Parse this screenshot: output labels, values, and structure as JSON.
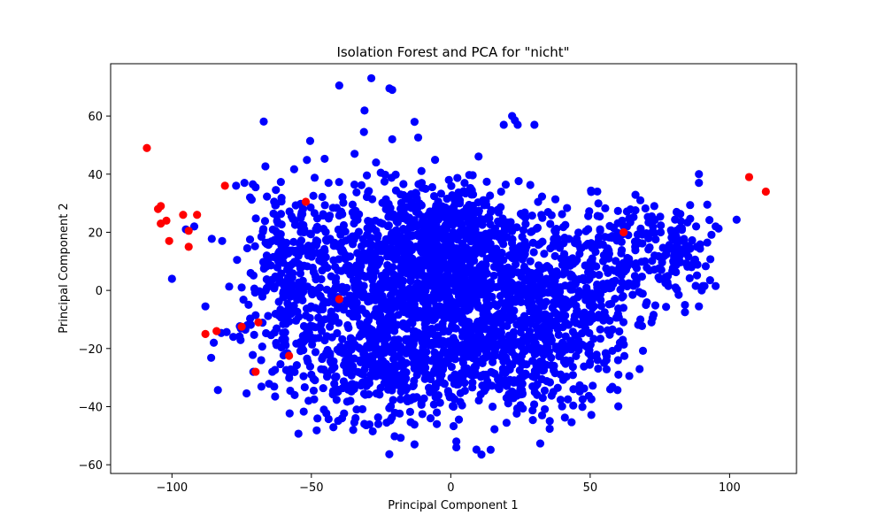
{
  "chart_data": {
    "type": "scatter",
    "title": "Isolation Forest and PCA for \"nicht\"",
    "xlabel": "Principal Component 1",
    "ylabel": "Principal Component 2",
    "xlim": [
      -122,
      124
    ],
    "ylim": [
      -63,
      78
    ],
    "xticks": [
      -100,
      -50,
      0,
      50,
      100
    ],
    "yticks": [
      -60,
      -40,
      -20,
      0,
      20,
      40,
      60
    ],
    "grid": false,
    "legend": "none",
    "colors": {
      "normal": "#0000ff",
      "anomaly": "#ff0000"
    },
    "series": [
      {
        "color": "#0000ff",
        "points": [
          [
            -40,
            70.5
          ],
          [
            -28.5,
            73
          ],
          [
            -22,
            69.5
          ],
          [
            -21,
            69
          ],
          [
            -13,
            58
          ],
          [
            -21,
            52
          ],
          [
            -34.5,
            47
          ],
          [
            22,
            60
          ],
          [
            23,
            58.5
          ],
          [
            19,
            57
          ],
          [
            24,
            57
          ],
          [
            30,
            57
          ],
          [
            -77,
            36
          ],
          [
            -74,
            37
          ],
          [
            -71,
            36.5
          ],
          [
            -70,
            35.5
          ],
          [
            -72,
            32
          ],
          [
            -53,
            28
          ],
          [
            -95,
            21
          ],
          [
            -92,
            22
          ],
          [
            -100,
            4
          ],
          [
            -82,
            17
          ],
          [
            -72,
            17.5
          ],
          [
            -66,
            16
          ],
          [
            -73,
            14.5
          ],
          [
            -66,
            12
          ],
          [
            -67,
            7.5
          ],
          [
            -75,
            1
          ],
          [
            -88,
            -5.5
          ],
          [
            -73,
            -12
          ],
          [
            -85,
            -18
          ],
          [
            -78,
            -16
          ],
          [
            -68,
            -24
          ],
          [
            -64,
            -28
          ],
          [
            -63,
            -36.5
          ],
          [
            -56,
            -36
          ],
          [
            -51,
            -38
          ],
          [
            -49,
            -37.5
          ],
          [
            -36,
            -38
          ],
          [
            -39,
            -44
          ],
          [
            -35,
            -48
          ],
          [
            -28,
            -48.5
          ],
          [
            -26,
            -46
          ],
          [
            -23,
            -45.5
          ],
          [
            -18,
            -37.5
          ],
          [
            -13,
            -53
          ],
          [
            -5,
            -42
          ],
          [
            -5,
            -46
          ],
          [
            1,
            -40
          ],
          [
            2,
            -52
          ],
          [
            2,
            -54
          ],
          [
            11,
            -56.5
          ],
          [
            15,
            -40
          ],
          [
            20,
            -37
          ],
          [
            25,
            -39.5
          ],
          [
            33,
            -37
          ],
          [
            42,
            -37.5
          ],
          [
            44,
            -34
          ],
          [
            55,
            -25
          ],
          [
            60,
            -24
          ],
          [
            72,
            -11
          ],
          [
            68,
            -10
          ],
          [
            70,
            -5
          ],
          [
            84,
            -5
          ],
          [
            84,
            -7.5
          ],
          [
            89,
            -5.5
          ],
          [
            90,
            0
          ],
          [
            91,
            1.5
          ],
          [
            93,
            3.5
          ],
          [
            95,
            1.5
          ],
          [
            77,
            2.5
          ],
          [
            89,
            37
          ],
          [
            89,
            40
          ],
          [
            92,
            29.5
          ],
          [
            95,
            22
          ],
          [
            88,
            22
          ],
          [
            81,
            27
          ],
          [
            73,
            29
          ],
          [
            68,
            31
          ],
          [
            62,
            22
          ],
          [
            -2,
            26
          ],
          [
            3,
            33
          ],
          [
            8,
            33
          ],
          [
            12,
            31
          ]
        ]
      },
      {
        "color": "#ff0000",
        "points": [
          [
            -109,
            49
          ],
          [
            -105,
            28
          ],
          [
            -104,
            29
          ],
          [
            -104,
            23
          ],
          [
            -102,
            24
          ],
          [
            -101,
            17
          ],
          [
            -96,
            26
          ],
          [
            -94,
            15
          ],
          [
            -94,
            20.5
          ],
          [
            -91,
            26
          ],
          [
            -88,
            -15
          ],
          [
            -84,
            -14
          ],
          [
            -81,
            36
          ],
          [
            -75,
            -12.5
          ],
          [
            -69,
            -11
          ],
          [
            -70,
            -28
          ],
          [
            -58,
            -22.5
          ],
          [
            -52,
            30.5
          ],
          [
            -40,
            -3
          ],
          [
            62,
            20
          ],
          [
            107,
            39
          ],
          [
            113,
            34
          ]
        ]
      }
    ],
    "cluster_blobs": [
      {
        "color": "#0000ff",
        "center": [
          -35,
          0
        ],
        "spread": [
          18,
          20
        ],
        "count": 650,
        "seed": 11
      },
      {
        "color": "#0000ff",
        "center": [
          -5,
          8
        ],
        "spread": [
          14,
          12
        ],
        "count": 700,
        "seed": 23
      },
      {
        "color": "#0000ff",
        "center": [
          32,
          -5
        ],
        "spread": [
          16,
          17
        ],
        "count": 650,
        "seed": 37
      },
      {
        "color": "#0000ff",
        "center": [
          10,
          -22
        ],
        "spread": [
          20,
          9
        ],
        "count": 320,
        "seed": 41
      },
      {
        "color": "#0000ff",
        "center": [
          -20,
          -28
        ],
        "spread": [
          17,
          8
        ],
        "count": 220,
        "seed": 53
      },
      {
        "color": "#0000ff",
        "center": [
          60,
          10
        ],
        "spread": [
          13,
          9
        ],
        "count": 160,
        "seed": 67
      },
      {
        "color": "#0000ff",
        "center": [
          -58,
          5
        ],
        "spread": [
          6,
          16
        ],
        "count": 140,
        "seed": 71
      },
      {
        "color": "#0000ff",
        "center": [
          -5,
          25
        ],
        "spread": [
          12,
          5
        ],
        "count": 120,
        "seed": 83
      },
      {
        "color": "#0000ff",
        "center": [
          78,
          15
        ],
        "spread": [
          8,
          7
        ],
        "count": 70,
        "seed": 97
      }
    ]
  }
}
